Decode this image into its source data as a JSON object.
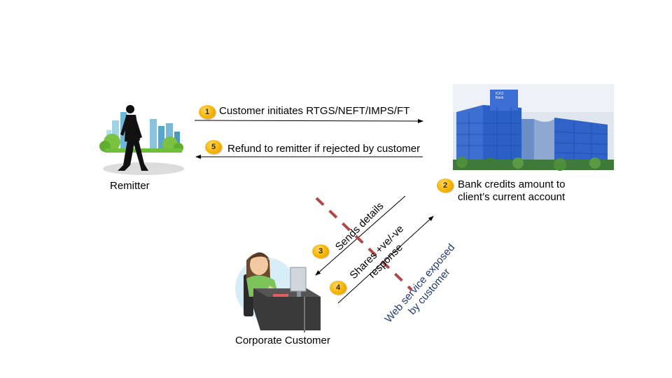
{
  "actors": {
    "remitter": "Remitter",
    "corporate_customer": "Corporate Customer"
  },
  "building_sign": {
    "line1": "ICICI",
    "line2": "Bank"
  },
  "steps": [
    {
      "number": "1",
      "text": "Customer initiates RTGS/NEFT/IMPS/FT"
    },
    {
      "number": "2",
      "line1": "Bank credits amount to",
      "line2": "client’s current account"
    },
    {
      "number": "3",
      "text": "Sends details"
    },
    {
      "number": "4",
      "line1": "Shares +ve/-ve",
      "line2": "response"
    },
    {
      "number": "5",
      "text": "Refund to remitter if rejected by customer"
    }
  ],
  "web_service": {
    "line1": "Web service exposed",
    "line2": "by customer"
  },
  "colors": {
    "badge": "#f5b400",
    "web_service_text": "#1f3a6e",
    "dashed_line": "#b04848",
    "building_glass": "#2a5fc4"
  }
}
